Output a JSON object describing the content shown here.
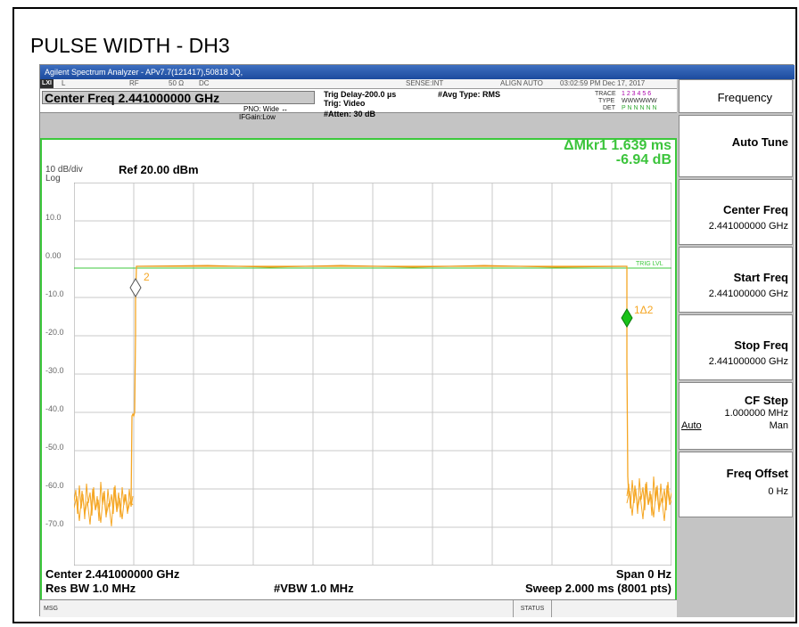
{
  "doc_title": "PULSE WIDTH - DH3",
  "window_title": "Agilent Spectrum Analyzer - APv7.7(121417),50818 JQ,",
  "status_row": {
    "lxi": "LXI",
    "l": "L",
    "rf": "RF",
    "impedance": "50 Ω",
    "coupling": "DC",
    "sense": "SENSE:INT",
    "align": "ALIGN AUTO",
    "datetime": "03:02:59 PM Dec 17, 2017"
  },
  "center_freq_header": "Center Freq 2.441000000 GHz",
  "pno": "PNO: Wide ↔",
  "ifgain": "IFGain:Low",
  "trig_delay": "Trig Delay-200.0 µs",
  "trig": "Trig: Video",
  "atten": "#Atten: 30 dB",
  "avg_type": "#Avg Type: RMS",
  "trace_info": {
    "trace_label": "TRACE",
    "trace_digits": "1 2 3 4 5 6",
    "type_label": "TYPE",
    "type_val": "WWWWWW",
    "det_label": "DET",
    "det_val": "P N N N N N"
  },
  "marker": {
    "delta": "ΔMkr1 1.639 ms",
    "level": "-6.94 dB"
  },
  "scale": "10 dB/div",
  "scale_type": "Log",
  "ref_level": "Ref 20.00 dBm",
  "y_ticks": [
    "10.0",
    "0.00",
    "-10.0",
    "-20.0",
    "-30.0",
    "-40.0",
    "-50.0",
    "-60.0",
    "-70.0"
  ],
  "trig_level_label": "TRIG LVL",
  "marker_labels": {
    "m2": "2",
    "m1": "1Δ2"
  },
  "bottom": {
    "center": "Center 2.441000000 GHz",
    "span": "Span 0 Hz",
    "rbw": "Res BW 1.0 MHz",
    "vbw": "#VBW 1.0 MHz",
    "sweep": "Sweep  2.000 ms (8001 pts)"
  },
  "statusbar": {
    "msg": "MSG",
    "status": "STATUS"
  },
  "softkeys": {
    "menu_title": "Frequency",
    "auto_tune": "Auto Tune",
    "center_freq": "Center Freq",
    "center_freq_val": "2.441000000 GHz",
    "start_freq": "Start Freq",
    "start_freq_val": "2.441000000 GHz",
    "stop_freq": "Stop Freq",
    "stop_freq_val": "2.441000000 GHz",
    "cf_step": "CF Step",
    "cf_step_val": "1.000000 MHz",
    "cf_auto": "Auto",
    "cf_man": "Man",
    "freq_offset": "Freq Offset",
    "freq_offset_val": "0 Hz"
  },
  "colors": {
    "trace": "#f5a623",
    "graticule_border": "#3cc83c",
    "trig_line": "#3cc83c"
  }
}
